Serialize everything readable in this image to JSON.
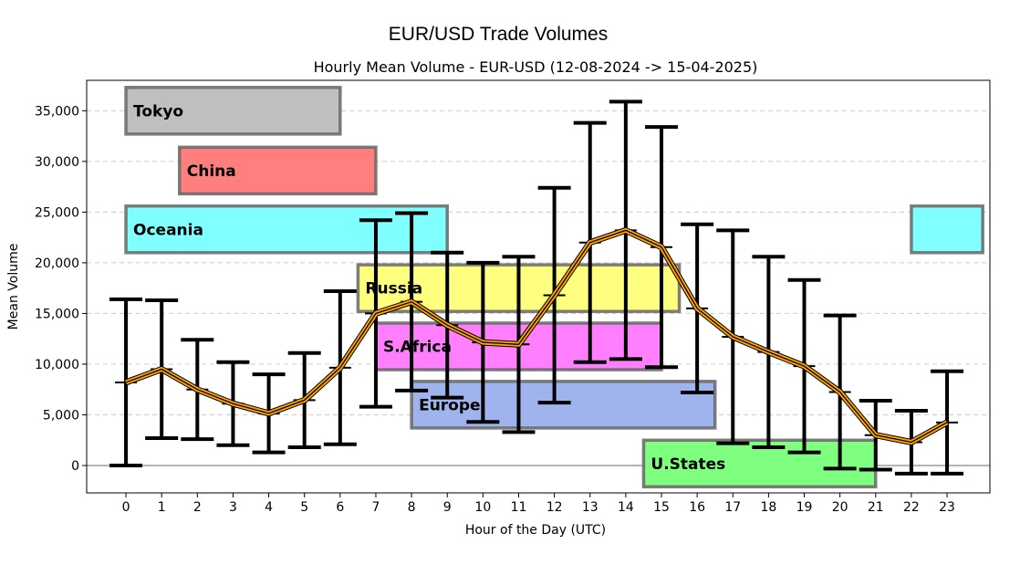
{
  "chart_data": {
    "type": "line",
    "suptitle": "EUR/USD Trade Volumes",
    "title": "Hourly Mean Volume - EUR-USD (12-08-2024 -> 15-04-2025)",
    "xlabel": "Hour of the Day (UTC)",
    "ylabel": "Mean Volume",
    "xlim": [
      -1.1,
      24.2
    ],
    "ylim": [
      -2700,
      38000
    ],
    "grid": "horizontal dashed",
    "x": [
      0,
      1,
      2,
      3,
      4,
      5,
      6,
      7,
      8,
      9,
      10,
      11,
      12,
      13,
      14,
      15,
      16,
      17,
      18,
      19,
      20,
      21,
      22,
      23
    ],
    "x_tick_labels": [
      "0",
      "1",
      "2",
      "3",
      "4",
      "5",
      "6",
      "7",
      "8",
      "9",
      "10",
      "11",
      "12",
      "13",
      "14",
      "15",
      "16",
      "17",
      "18",
      "19",
      "20",
      "21",
      "22",
      "23"
    ],
    "y_ticks": [
      0,
      5000,
      10000,
      15000,
      20000,
      25000,
      30000,
      35000
    ],
    "y_tick_labels": [
      "0",
      "5,000",
      "10,000",
      "15,000",
      "20,000",
      "25,000",
      "30,000",
      "35,000"
    ],
    "series": [
      {
        "mean": [
          8200,
          9500,
          7500,
          6100,
          5150,
          6450,
          9650,
          15000,
          16150,
          13850,
          12150,
          11950,
          16800,
          22000,
          23200,
          21550,
          15500,
          12700,
          11200,
          9800,
          7250,
          3000,
          2300,
          4250
        ],
        "error": [
          8200,
          6800,
          4900,
          4100,
          3850,
          4650,
          7550,
          9200,
          8750,
          7150,
          7850,
          8650,
          10600,
          11800,
          12700,
          11850,
          8300,
          10500,
          9400,
          8500,
          7550,
          3400,
          3100,
          5050
        ],
        "color": "#ffa500"
      }
    ],
    "sessions": [
      {
        "label": "Tokyo",
        "start": 0,
        "end": 6,
        "y": 35000,
        "color": "#bfbfbf"
      },
      {
        "label": "China",
        "start": 1.5,
        "end": 7,
        "y": 29100,
        "color": "#ff7f7f"
      },
      {
        "label": "Oceania",
        "start": 0,
        "end": 9,
        "y": 23300,
        "color": "#7fffff"
      },
      {
        "label": "",
        "start": 22,
        "end": 24,
        "y": 23300,
        "color": "#7fffff"
      },
      {
        "label": "Russia",
        "start": 6.5,
        "end": 15.5,
        "y": 17500,
        "color": "#ffff7f"
      },
      {
        "label": "S.Africa",
        "start": 7,
        "end": 15,
        "y": 11750,
        "color": "#ff7fff"
      },
      {
        "label": "Europe",
        "start": 8,
        "end": 16.5,
        "y": 6000,
        "color": "#9fb3ec"
      },
      {
        "label": "U.States",
        "start": 14.5,
        "end": 21,
        "y": 200,
        "color": "#7fff7f"
      }
    ],
    "session_height": 4600
  }
}
